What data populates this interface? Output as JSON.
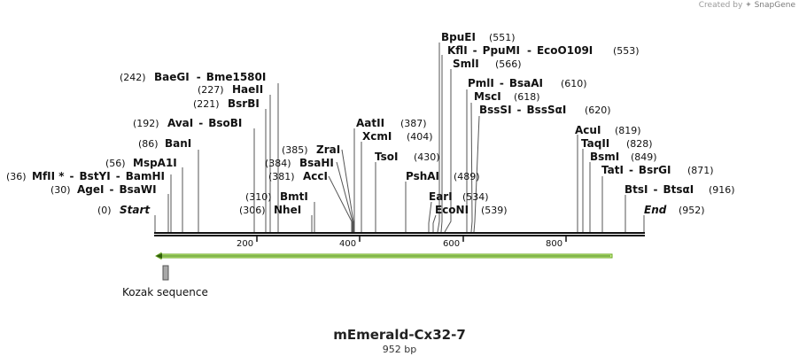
{
  "credit": {
    "prefix": "Created by",
    "brand": "SnapGene"
  },
  "sequence": {
    "name": "mEmerald-Cx32-7",
    "length_label": "952 bp",
    "length": 952
  },
  "colors": {
    "feature_fill": "#c8f08c",
    "feature_stroke": "#6aa621",
    "misc_fill": "#a8a8a8",
    "backbone": "#111111"
  },
  "ruler_ticks": [
    "200",
    "400",
    "600",
    "800"
  ],
  "ends": {
    "start": {
      "label": "Start",
      "pos": "(0)"
    },
    "end": {
      "label": "End",
      "pos": "(952)"
    }
  },
  "sites": [
    {
      "names": [
        "MfII *",
        "BstYI",
        "BamHI"
      ],
      "pos": "(36)"
    },
    {
      "names": [
        "AgeI",
        "BsaWI"
      ],
      "pos": "(30)"
    },
    {
      "names": [
        "MspA1I"
      ],
      "pos": "(56)"
    },
    {
      "names": [
        "BanI"
      ],
      "pos": "(86)"
    },
    {
      "names": [
        "AvaI",
        "BsoBI"
      ],
      "pos": "(192)"
    },
    {
      "names": [
        "BsrBI"
      ],
      "pos": "(221)"
    },
    {
      "names": [
        "HaeII"
      ],
      "pos": "(227)"
    },
    {
      "names": [
        "BaeGI",
        "Bme1580I"
      ],
      "pos": "(242)"
    },
    {
      "names": [
        "NheI"
      ],
      "pos": "(306)"
    },
    {
      "names": [
        "BmtI"
      ],
      "pos": "(310)"
    },
    {
      "names": [
        "AccI"
      ],
      "pos": "(381)"
    },
    {
      "names": [
        "BsaHI"
      ],
      "pos": "(384)"
    },
    {
      "names": [
        "ZraI"
      ],
      "pos": "(385)"
    },
    {
      "names": [
        "AatII"
      ],
      "pos": "(387)"
    },
    {
      "names": [
        "XcmI"
      ],
      "pos": "(404)"
    },
    {
      "names": [
        "TsoI"
      ],
      "pos": "(430)"
    },
    {
      "names": [
        "PshAI"
      ],
      "pos": "(489)"
    },
    {
      "names": [
        "EarI"
      ],
      "pos": "(534)"
    },
    {
      "names": [
        "EcoNI"
      ],
      "pos": "(539)"
    },
    {
      "names": [
        "BpuEI"
      ],
      "pos": "(551)"
    },
    {
      "names": [
        "KflI",
        "PpuMI",
        "EcoO109I"
      ],
      "pos": "(553)"
    },
    {
      "names": [
        "SmlI"
      ],
      "pos": "(566)"
    },
    {
      "names": [
        "PmlI",
        "BsaAI"
      ],
      "pos": "(610)"
    },
    {
      "names": [
        "MscI"
      ],
      "pos": "(618)"
    },
    {
      "names": [
        "BssSI",
        "BssSαI"
      ],
      "pos": "(620)"
    },
    {
      "names": [
        "AcuI"
      ],
      "pos": "(819)"
    },
    {
      "names": [
        "TaqII"
      ],
      "pos": "(828)"
    },
    {
      "names": [
        "BsmI"
      ],
      "pos": "(849)"
    },
    {
      "names": [
        "TatI",
        "BsrGI"
      ],
      "pos": "(871)"
    },
    {
      "names": [
        "BtsI",
        "BtsαI"
      ],
      "pos": "(916)"
    }
  ],
  "features": [
    {
      "type": "cds",
      "label": "",
      "start": 3,
      "end": 893,
      "direction": "reverse"
    },
    {
      "type": "misc",
      "label": "Kozak sequence",
      "start": 11,
      "end": 21
    }
  ]
}
